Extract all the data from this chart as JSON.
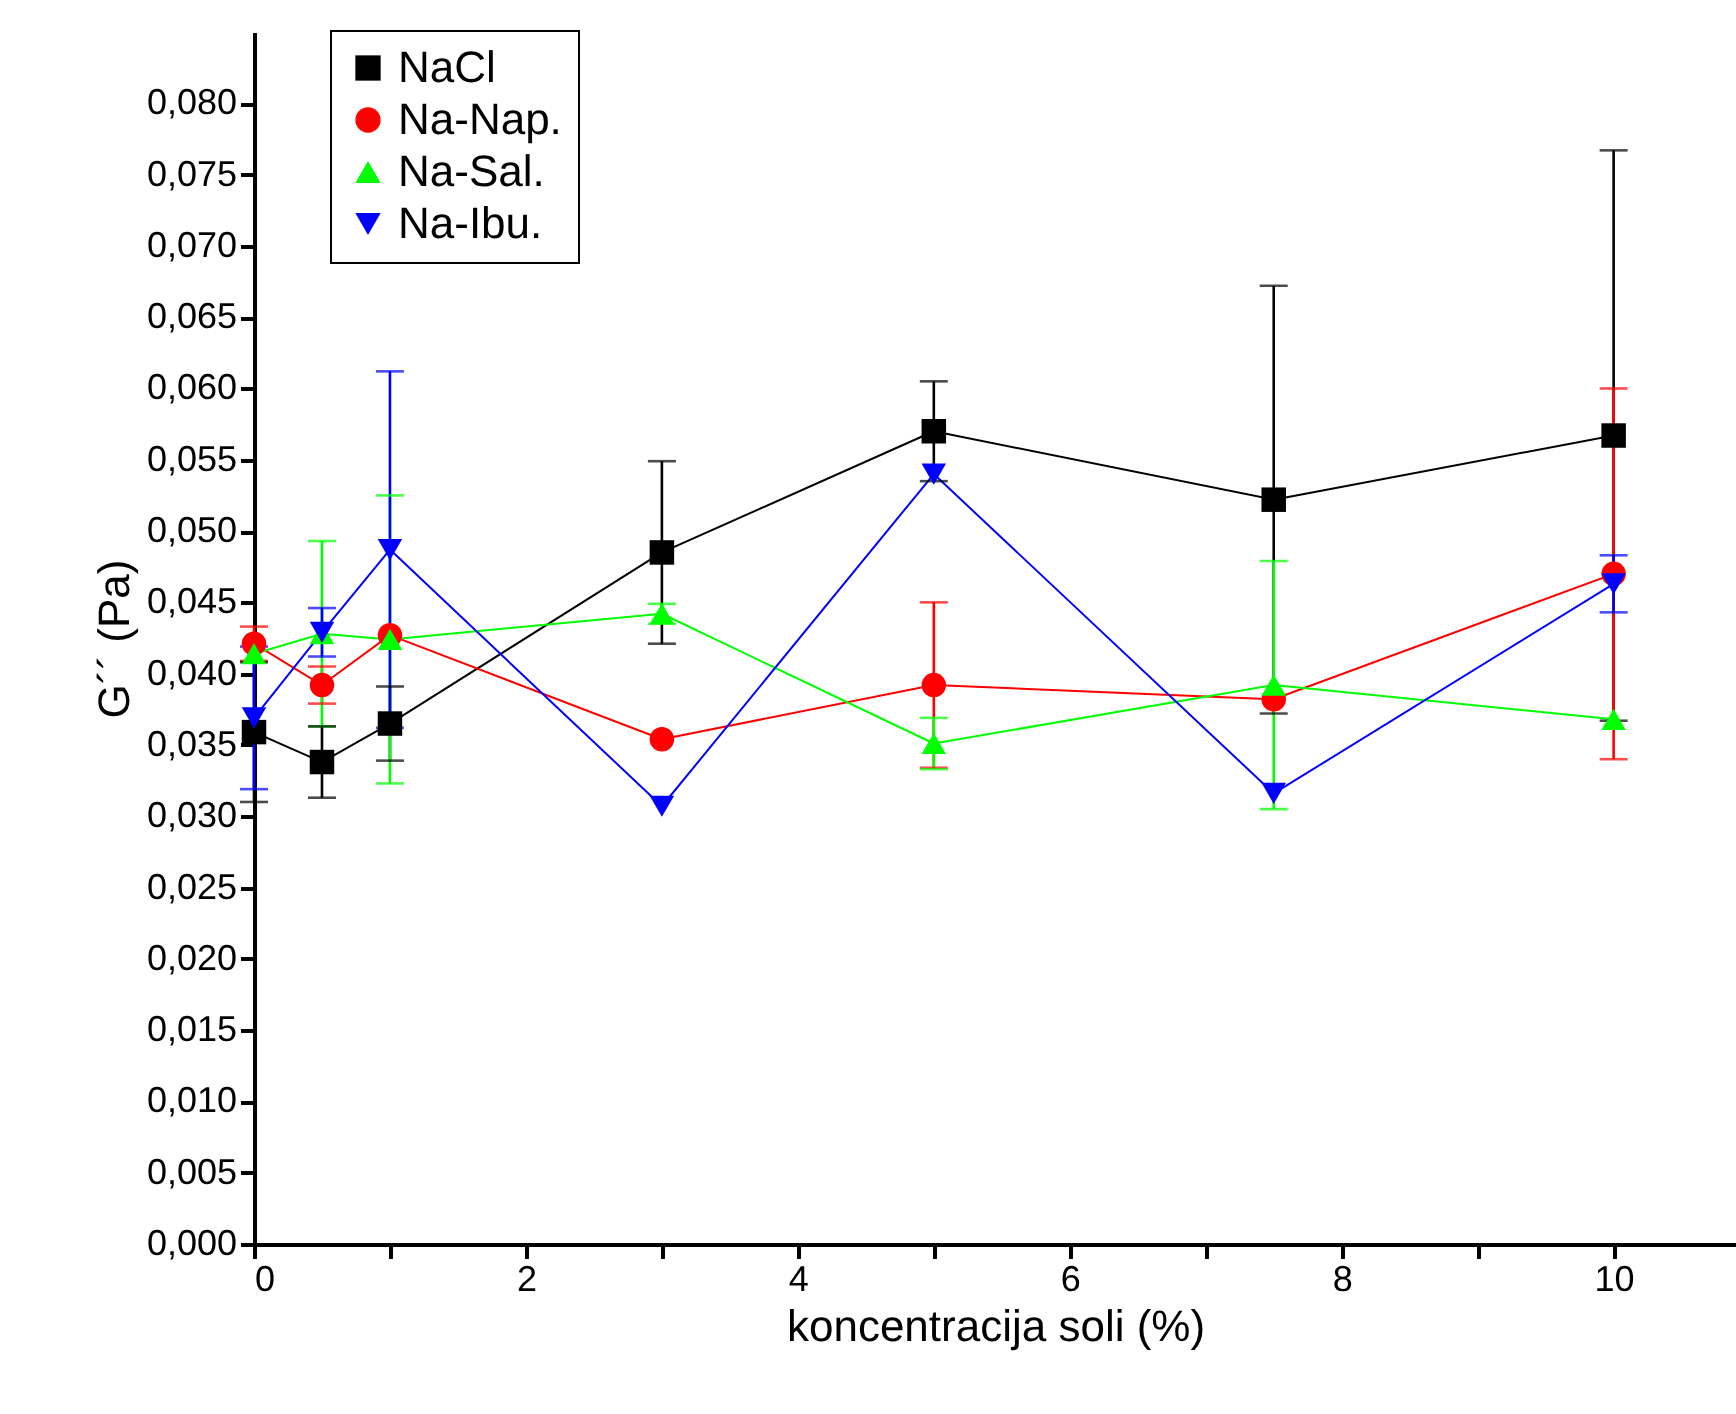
{
  "chart_data": {
    "type": "line",
    "xlabel": "koncentracija soli (%)",
    "ylabel": "G´´ (Pa)",
    "x": [
      0,
      0.5,
      1,
      3,
      5,
      7.5,
      10
    ],
    "series": [
      {
        "name": "NaCl",
        "color": "#000000",
        "marker": "square",
        "values": [
          0.0359,
          0.0338,
          0.0365,
          0.0485,
          0.057,
          0.0522,
          0.0567
        ],
        "errors": [
          0.0049,
          0.0025,
          0.0026,
          0.0064,
          0.0035,
          0.015,
          0.02
        ]
      },
      {
        "name": "Na-Nap.",
        "color": "#ff0000",
        "marker": "circle",
        "values": [
          0.0421,
          0.0392,
          0.0427,
          0.0354,
          0.0392,
          0.0382,
          0.047
        ],
        "errors": [
          0.0012,
          0.0013,
          null,
          null,
          0.0058,
          null,
          0.013
        ]
      },
      {
        "name": "Na-Sal.",
        "color": "#00ff00",
        "marker": "triangle",
        "values": [
          0.0414,
          0.0428,
          0.0424,
          0.0442,
          0.0351,
          0.0392,
          0.0368
        ],
        "errors": [
          null,
          0.0065,
          0.0101,
          0.0007,
          0.0018,
          0.0087,
          null
        ]
      },
      {
        "name": "Na-Ibu.",
        "color": "#0000ff",
        "marker": "triangle-down",
        "values": [
          0.0369,
          0.0429,
          0.0487,
          0.0307,
          0.054,
          0.0316,
          0.0463
        ],
        "errors": [
          0.005,
          0.0017,
          0.0125,
          null,
          null,
          null,
          0.002
        ]
      }
    ],
    "xlim": [
      0,
      10.9
    ],
    "xticks": [
      0,
      {
        "value": 1,
        "label": null
      },
      2,
      {
        "value": 3,
        "label": null
      },
      4,
      {
        "value": 5,
        "label": null
      },
      6,
      {
        "value": 7,
        "label": null
      },
      8,
      {
        "value": 9,
        "label": null
      },
      10
    ],
    "ylim": [
      0,
      0.085
    ],
    "yticks": [
      {
        "value": 0,
        "label": "0,000"
      },
      {
        "value": 0.005,
        "label": "0,005"
      },
      {
        "value": 0.01,
        "label": "0,010"
      },
      {
        "value": 0.015,
        "label": "0,015"
      },
      {
        "value": 0.02,
        "label": "0,020"
      },
      {
        "value": 0.025,
        "label": "0,025"
      },
      {
        "value": 0.03,
        "label": "0,030"
      },
      {
        "value": 0.035,
        "label": "0,035"
      },
      {
        "value": 0.04,
        "label": "0,040"
      },
      {
        "value": 0.045,
        "label": "0,045"
      },
      {
        "value": 0.05,
        "label": "0,050"
      },
      {
        "value": 0.055,
        "label": "0,055"
      },
      {
        "value": 0.06,
        "label": "0,060"
      },
      {
        "value": 0.065,
        "label": "0,065"
      },
      {
        "value": 0.07,
        "label": "0,070"
      },
      {
        "value": 0.075,
        "label": "0,075"
      },
      {
        "value": 0.08,
        "label": "0,080"
      }
    ],
    "legend": "top left",
    "line_style": "solid",
    "grid": false
  }
}
